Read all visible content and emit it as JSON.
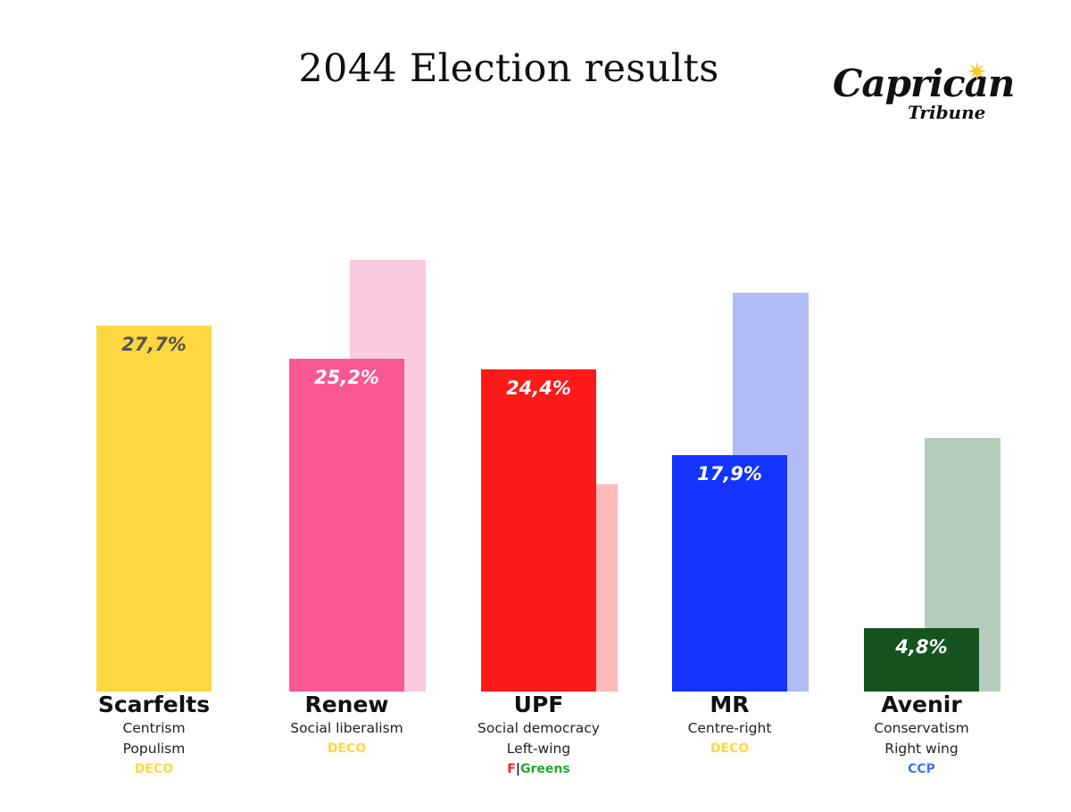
{
  "chart_data": {
    "type": "bar",
    "title": "2044 Election results",
    "xlabel": "",
    "ylabel": "",
    "ylim": [
      0,
      100
    ],
    "legend": "none",
    "grid": false,
    "categories": [
      "Scarfelts",
      "Renew",
      "UPF",
      "MR",
      "Avenir"
    ],
    "series": [
      {
        "values": [
          27.7,
          25.2,
          24.4,
          17.9,
          4.8
        ],
        "value_labels": [
          "27,7%",
          "25,2%",
          "24,4%",
          "17,9%",
          "4,8%"
        ],
        "colors": [
          "#ffd740",
          "#fa5795",
          "#ff1a1a",
          "#1433ff",
          "#15541f"
        ],
        "label_colors": [
          "#555555",
          "#ffffff",
          "#ffffff",
          "#ffffff",
          "#ffffff"
        ]
      },
      {
        "values": [
          null,
          32.7,
          15.7,
          30.2,
          19.2
        ],
        "colors": [
          "",
          "#fbcadf",
          "#ffb9b9",
          "#b1bbf5",
          "#b5cbbb"
        ]
      }
    ],
    "parties": [
      {
        "name": "Scarfelts",
        "lines": [
          "Centrism",
          "Populism"
        ],
        "coalition": [
          {
            "text": "DECO",
            "color": "#ffd740"
          }
        ]
      },
      {
        "name": "Renew",
        "lines": [
          "Social liberalism"
        ],
        "coalition": [
          {
            "text": "DECO",
            "color": "#ffd740"
          }
        ]
      },
      {
        "name": "UPF",
        "lines": [
          "Social democracy",
          "Left-wing"
        ],
        "coalition": [
          {
            "text": "F",
            "color": "#ff1a1a"
          },
          {
            "text": "|",
            "color": "#111111"
          },
          {
            "text": "Greens",
            "color": "#22aa2a"
          }
        ]
      },
      {
        "name": "MR",
        "lines": [
          "Centre-right"
        ],
        "coalition": [
          {
            "text": "DECO",
            "color": "#ffd740"
          }
        ]
      },
      {
        "name": "Avenir",
        "lines": [
          "Conservatism",
          "Right wing"
        ],
        "coalition": [
          {
            "text": "CCP",
            "color": "#3a7ae8"
          }
        ]
      }
    ]
  },
  "logo": {
    "main": "Caprican",
    "sub": "Tribune",
    "icon": "star-icon",
    "accent": "#f2cd2c"
  }
}
